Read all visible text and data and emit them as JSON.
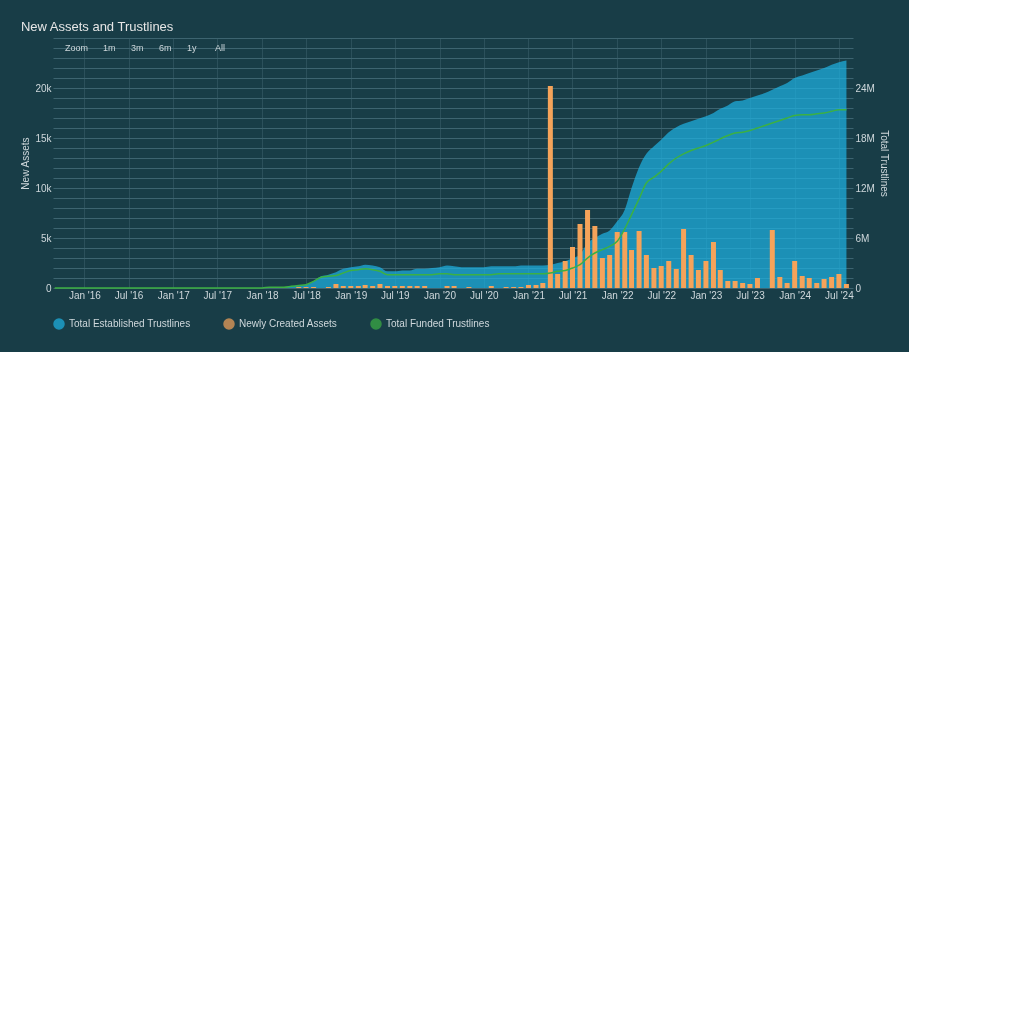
{
  "chart_data": {
    "type": "bar",
    "title": "New Assets and Trustlines",
    "annotations": [
      "Zoom",
      "1m",
      "3m",
      "6m",
      "1y",
      "All"
    ],
    "ylabel": "New Assets",
    "y2label": "Total Trustlines",
    "xlim": [
      "2015-08-25",
      "2024-08-28"
    ],
    "xticks": [
      {
        "value": "2016-01",
        "label": "Jan '16"
      },
      {
        "value": "2016-07",
        "label": "Jul '16"
      },
      {
        "value": "2017-01",
        "label": "Jan '17"
      },
      {
        "value": "2017-07",
        "label": "Jul '17"
      },
      {
        "value": "2018-01",
        "label": "Jan '18"
      },
      {
        "value": "2018-07",
        "label": "Jul '18"
      },
      {
        "value": "2019-01",
        "label": "Jan '19"
      },
      {
        "value": "2019-07",
        "label": "Jul '19"
      },
      {
        "value": "2020-01",
        "label": "Jan '20"
      },
      {
        "value": "2020-07",
        "label": "Jul '20"
      },
      {
        "value": "2021-01",
        "label": "Jan '21"
      },
      {
        "value": "2021-07",
        "label": "Jul '21"
      },
      {
        "value": "2022-01",
        "label": "Jan '22"
      },
      {
        "value": "2022-07",
        "label": "Jul '22"
      },
      {
        "value": "2023-01",
        "label": "Jan '23"
      },
      {
        "value": "2023-07",
        "label": "Jul '23"
      },
      {
        "value": "2024-01",
        "label": "Jan '24"
      },
      {
        "value": "2024-07",
        "label": "Jul '24"
      }
    ],
    "ylim": [
      0,
      25000
    ],
    "yticks": [
      0,
      {
        "value": 1000,
        "label": null
      },
      {
        "value": 2000,
        "label": null
      },
      {
        "value": 3000,
        "label": null
      },
      {
        "value": 4000,
        "label": null
      },
      {
        "value": 5000,
        "label": "5k"
      },
      {
        "value": 6000,
        "label": null
      },
      {
        "value": 7000,
        "label": null
      },
      {
        "value": 8000,
        "label": null
      },
      {
        "value": 9000,
        "label": null
      },
      {
        "value": 10000,
        "label": "10k"
      },
      {
        "value": 11000,
        "label": null
      },
      {
        "value": 12000,
        "label": null
      },
      {
        "value": 13000,
        "label": null
      },
      {
        "value": 14000,
        "label": null
      },
      {
        "value": 15000,
        "label": "15k"
      },
      {
        "value": 16000,
        "label": null
      },
      {
        "value": 17000,
        "label": null
      },
      {
        "value": 18000,
        "label": null
      },
      {
        "value": 19000,
        "label": null
      },
      {
        "value": 20000,
        "label": "20k"
      },
      {
        "value": 21000,
        "label": null
      },
      {
        "value": 22000,
        "label": null
      },
      {
        "value": 23000,
        "label": null
      },
      {
        "value": 24000,
        "label": null
      },
      {
        "value": 25000,
        "label": null
      }
    ],
    "y2lim": [
      0,
      30
    ],
    "y2ticks": [
      0,
      {
        "value": 6,
        "label": "6M"
      },
      {
        "value": 12,
        "label": "12M"
      },
      {
        "value": 18,
        "label": "18M"
      },
      {
        "value": 24,
        "label": "24M"
      }
    ],
    "grid": true,
    "legend": "bottom",
    "series": [
      {
        "name": "Total Established Trustlines",
        "type": "area",
        "axis": "y2",
        "color": "#1eb4e6",
        "x": [
          "2015-09",
          "2017-12",
          "2018-01",
          "2018-02",
          "2018-03",
          "2018-04",
          "2018-05",
          "2018-06",
          "2018-07",
          "2018-08",
          "2018-09",
          "2018-10",
          "2018-11",
          "2018-12",
          "2019-01",
          "2019-02",
          "2019-03",
          "2019-04",
          "2019-05",
          "2019-06",
          "2019-07",
          "2019-08",
          "2019-09",
          "2019-10",
          "2019-11",
          "2019-12",
          "2020-01",
          "2020-02",
          "2020-03",
          "2020-04",
          "2020-05",
          "2020-06",
          "2020-07",
          "2020-08",
          "2020-09",
          "2020-10",
          "2020-11",
          "2020-12",
          "2021-01",
          "2021-02",
          "2021-03",
          "2021-04",
          "2021-05",
          "2021-06",
          "2021-07",
          "2021-08",
          "2021-09",
          "2021-10",
          "2021-11",
          "2021-12",
          "2022-01",
          "2022-02",
          "2022-03",
          "2022-04",
          "2022-05",
          "2022-06",
          "2022-07",
          "2022-08",
          "2022-09",
          "2022-10",
          "2022-11",
          "2022-12",
          "2023-01",
          "2023-02",
          "2023-03",
          "2023-04",
          "2023-05",
          "2023-06",
          "2023-07",
          "2023-08",
          "2023-09",
          "2023-10",
          "2023-11",
          "2023-12",
          "2024-01",
          "2024-02",
          "2024-03",
          "2024-04",
          "2024-05",
          "2024-06",
          "2024-07",
          "2024-08"
        ],
        "values": [
          0,
          0,
          0,
          0.1,
          0.1,
          0.1,
          0.2,
          0.3,
          0.4,
          0.8,
          1.4,
          1.6,
          1.9,
          2.3,
          2.5,
          2.6,
          2.8,
          2.7,
          2.5,
          2.0,
          2.0,
          2.1,
          2.1,
          2.3,
          2.3,
          2.4,
          2.5,
          2.7,
          2.6,
          2.5,
          2.5,
          2.5,
          2.5,
          2.6,
          2.6,
          2.6,
          2.6,
          2.7,
          2.7,
          2.7,
          2.7,
          2.8,
          3.0,
          3.2,
          3.6,
          4.0,
          5.4,
          6.0,
          6.5,
          6.9,
          8.0,
          9.4,
          12.0,
          14.5,
          16.1,
          17.0,
          17.8,
          18.7,
          19.3,
          19.7,
          20.0,
          20.3,
          20.6,
          21.0,
          21.5,
          21.9,
          22.4,
          22.5,
          22.8,
          23.1,
          23.4,
          23.8,
          24.2,
          24.6,
          25.2,
          25.5,
          25.8,
          26.1,
          26.4,
          26.8,
          27.1,
          27.3
        ]
      },
      {
        "name": "Newly Created Assets",
        "color": "#f5a35a",
        "x": [
          "2018-06",
          "2018-07",
          "2018-08",
          "2018-09",
          "2018-10",
          "2018-11",
          "2018-12",
          "2019-01",
          "2019-02",
          "2019-03",
          "2019-04",
          "2019-05",
          "2019-06",
          "2019-07",
          "2019-08",
          "2019-09",
          "2019-10",
          "2019-11",
          "2019-12",
          "2020-01",
          "2020-02",
          "2020-03",
          "2020-04",
          "2020-05",
          "2020-06",
          "2020-07",
          "2020-08",
          "2020-09",
          "2020-10",
          "2020-11",
          "2020-12",
          "2021-01",
          "2021-02",
          "2021-03",
          "2021-04",
          "2021-05",
          "2021-06",
          "2021-07",
          "2021-08",
          "2021-09",
          "2021-10",
          "2021-11",
          "2021-12",
          "2022-01",
          "2022-02",
          "2022-03",
          "2022-04",
          "2022-05",
          "2022-06",
          "2022-07",
          "2022-08",
          "2022-09",
          "2022-10",
          "2022-11",
          "2022-12",
          "2023-01",
          "2023-02",
          "2023-03",
          "2023-04",
          "2023-05",
          "2023-06",
          "2023-07",
          "2023-08",
          "2023-09",
          "2023-10",
          "2023-11",
          "2023-12",
          "2024-01",
          "2024-02",
          "2024-03",
          "2024-04",
          "2024-05",
          "2024-06",
          "2024-07",
          "2024-08"
        ],
        "values": [
          100,
          100,
          100,
          null,
          100,
          400,
          200,
          200,
          200,
          300,
          200,
          400,
          200,
          200,
          200,
          200,
          200,
          200,
          null,
          null,
          200,
          200,
          null,
          100,
          null,
          null,
          200,
          null,
          100,
          100,
          100,
          300,
          300,
          500,
          20200,
          1400,
          2700,
          4100,
          6400,
          7800,
          6200,
          3000,
          3300,
          5600,
          5600,
          3800,
          5700,
          3300,
          2000,
          2200,
          2700,
          1900,
          5900,
          3300,
          1800,
          2700,
          4600,
          1800,
          700,
          700,
          500,
          400,
          1000,
          null,
          5800,
          1100,
          500,
          2700,
          1200,
          1000,
          500,
          900,
          1100,
          1400,
          400
        ]
      },
      {
        "name": "Total Funded Trustlines",
        "type": "line",
        "axis": "y2",
        "color": "#3cb043",
        "x": [
          "2015-09",
          "2017-12",
          "2018-01",
          "2018-02",
          "2018-03",
          "2018-04",
          "2018-05",
          "2018-06",
          "2018-07",
          "2018-08",
          "2018-09",
          "2018-10",
          "2018-11",
          "2018-12",
          "2019-01",
          "2019-02",
          "2019-03",
          "2019-04",
          "2019-05",
          "2019-06",
          "2019-07",
          "2019-08",
          "2019-09",
          "2019-10",
          "2019-11",
          "2019-12",
          "2020-01",
          "2020-02",
          "2020-03",
          "2020-04",
          "2020-05",
          "2020-06",
          "2020-07",
          "2020-08",
          "2020-09",
          "2020-10",
          "2020-11",
          "2020-12",
          "2021-01",
          "2021-02",
          "2021-03",
          "2021-04",
          "2021-05",
          "2021-06",
          "2021-07",
          "2021-08",
          "2021-09",
          "2021-10",
          "2021-11",
          "2021-12",
          "2022-01",
          "2022-02",
          "2022-03",
          "2022-04",
          "2022-05",
          "2022-06",
          "2022-07",
          "2022-08",
          "2022-09",
          "2022-10",
          "2022-11",
          "2022-12",
          "2023-01",
          "2023-02",
          "2023-03",
          "2023-04",
          "2023-05",
          "2023-06",
          "2023-07",
          "2023-08",
          "2023-09",
          "2023-10",
          "2023-11",
          "2023-12",
          "2024-01",
          "2024-02",
          "2024-03",
          "2024-04",
          "2024-05",
          "2024-06",
          "2024-07",
          "2024-08"
        ],
        "values": [
          0,
          0,
          0,
          0.1,
          0.1,
          0.1,
          0.2,
          0.3,
          0.4,
          0.8,
          1.3,
          1.4,
          1.5,
          1.8,
          2.1,
          2.2,
          2.3,
          2.2,
          2.0,
          1.6,
          1.6,
          1.6,
          1.6,
          1.6,
          1.6,
          1.6,
          1.7,
          1.7,
          1.6,
          1.6,
          1.6,
          1.6,
          1.6,
          1.6,
          1.7,
          1.7,
          1.7,
          1.7,
          1.7,
          1.7,
          1.7,
          1.8,
          2.0,
          2.1,
          2.4,
          2.8,
          3.6,
          4.2,
          4.6,
          5.0,
          5.6,
          7.1,
          8.8,
          10.7,
          12.6,
          13.3,
          14.0,
          14.9,
          15.6,
          16.1,
          16.5,
          16.8,
          17.1,
          17.5,
          17.9,
          18.3,
          18.6,
          18.7,
          18.9,
          19.2,
          19.5,
          19.8,
          20.1,
          20.4,
          20.7,
          20.8,
          20.8,
          20.9,
          21.0,
          21.2,
          21.4,
          21.4
        ]
      }
    ]
  }
}
